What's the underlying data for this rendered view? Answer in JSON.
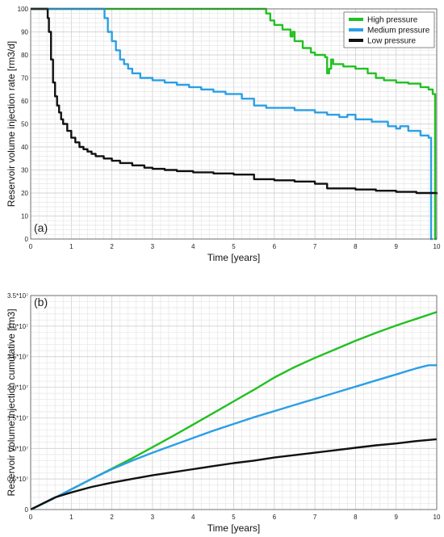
{
  "chart_data": [
    {
      "type": "line",
      "panel_label": "(a)",
      "xlabel": "Time [years]",
      "ylabel": "Reservoir volume injection rate [rm3/d]",
      "xlim": [
        0,
        10
      ],
      "ylim": [
        0,
        100
      ],
      "xticks": [
        "0",
        "1",
        "2",
        "3",
        "4",
        "5",
        "6",
        "7",
        "8",
        "9",
        "10"
      ],
      "yticks": [
        "0",
        "10",
        "20",
        "30",
        "40",
        "50",
        "60",
        "70",
        "80",
        "90",
        "100"
      ],
      "grid": true,
      "legend_position": "top-right",
      "legend": [
        "High pressure",
        "Medium pressure",
        "Low pressure"
      ],
      "series": [
        {
          "name": "High pressure",
          "color": "#22c022",
          "x": [
            0,
            5.75,
            5.8,
            5.9,
            6.0,
            6.2,
            6.4,
            6.45,
            6.5,
            6.7,
            6.9,
            7.0,
            7.2,
            7.25,
            7.3,
            7.35,
            7.4,
            7.45,
            7.5,
            7.7,
            8.0,
            8.3,
            8.5,
            8.7,
            9.0,
            9.3,
            9.6,
            9.8,
            9.9,
            9.95,
            9.96,
            10.0
          ],
          "y": [
            100,
            100,
            98,
            95,
            93,
            91,
            88,
            90,
            86,
            83,
            81,
            80,
            80,
            79,
            72,
            74,
            78,
            76,
            76,
            75,
            74,
            72,
            70,
            69,
            68,
            67.5,
            66,
            65,
            63,
            63,
            0,
            0
          ]
        },
        {
          "name": "Medium pressure",
          "color": "#2b9fe6",
          "x": [
            0,
            1.78,
            1.82,
            1.9,
            2.0,
            2.1,
            2.2,
            2.3,
            2.4,
            2.5,
            2.7,
            3.0,
            3.3,
            3.6,
            3.9,
            4.2,
            4.5,
            4.8,
            5.0,
            5.2,
            5.5,
            5.8,
            6.0,
            6.5,
            7.0,
            7.3,
            7.6,
            7.8,
            8.0,
            8.2,
            8.4,
            8.8,
            9.0,
            9.1,
            9.3,
            9.6,
            9.8,
            9.85,
            9.86,
            9.9
          ],
          "y": [
            100,
            100,
            96,
            90,
            86,
            82,
            78,
            76,
            74,
            72,
            70,
            69,
            68,
            67,
            66,
            65,
            64,
            63,
            63,
            61,
            58,
            57,
            57,
            56,
            55,
            54,
            53,
            54,
            52,
            52,
            51,
            49,
            48,
            49,
            47,
            45,
            44,
            44,
            0,
            0
          ]
        },
        {
          "name": "Low pressure",
          "color": "#111111",
          "x": [
            0,
            0.38,
            0.42,
            0.45,
            0.5,
            0.55,
            0.6,
            0.65,
            0.7,
            0.75,
            0.8,
            0.9,
            1.0,
            1.1,
            1.2,
            1.3,
            1.4,
            1.5,
            1.6,
            1.8,
            2.0,
            2.2,
            2.5,
            2.8,
            3.0,
            3.3,
            3.6,
            4.0,
            4.5,
            5.0,
            5.5,
            6.0,
            6.5,
            7.0,
            7.3,
            7.5,
            8.0,
            8.5,
            9.0,
            9.5,
            10.0
          ],
          "y": [
            100,
            100,
            96,
            90,
            78,
            68,
            62,
            58,
            55,
            52,
            50,
            47,
            44,
            42,
            40,
            39,
            38,
            37,
            36,
            35,
            34,
            33,
            32,
            31,
            30.5,
            30,
            29.5,
            29,
            28.5,
            28,
            26,
            25.5,
            25,
            24,
            22,
            22,
            21.5,
            21,
            20.5,
            20,
            19.5
          ]
        }
      ]
    },
    {
      "type": "line",
      "panel_label": "(b)",
      "xlabel": "Time [years]",
      "ylabel": "Reservoir volume injection cumulative [rm3]",
      "xlim": [
        0,
        10
      ],
      "ylim": [
        0,
        35000000.0
      ],
      "xticks": [
        "0",
        "1",
        "2",
        "3",
        "4",
        "5",
        "6",
        "7",
        "8",
        "9",
        "10"
      ],
      "yticks": [
        "0",
        "0.5*10⁷",
        "1.0*10⁷",
        "1.5*10⁷",
        "2.0*10⁷",
        "2.5*10⁷",
        "3.0*10⁷",
        "3.5*10⁷"
      ],
      "grid": true,
      "series": [
        {
          "name": "High pressure",
          "color": "#22c022",
          "x": [
            0,
            0.5,
            1,
            1.5,
            2,
            2.5,
            3,
            3.5,
            4,
            4.5,
            5,
            5.5,
            6,
            6.5,
            7,
            7.5,
            8,
            8.5,
            9,
            9.5,
            10
          ],
          "y": [
            0,
            1600000.0,
            3300000.0,
            5000000.0,
            6700000.0,
            8400000.0,
            10200000.0,
            12000000.0,
            13900000.0,
            15800000.0,
            17700000.0,
            19600000.0,
            21600000.0,
            23300000.0,
            24800000.0,
            26200000.0,
            27600000.0,
            28900000.0,
            30100000.0,
            31200000.0,
            32300000.0
          ]
        },
        {
          "name": "Medium pressure",
          "color": "#2b9fe6",
          "x": [
            0,
            0.5,
            1,
            1.5,
            2,
            2.5,
            3,
            3.5,
            4,
            4.5,
            5,
            5.5,
            6,
            6.5,
            7,
            7.5,
            8,
            8.5,
            9,
            9.5,
            9.8,
            10
          ],
          "y": [
            0,
            1600000.0,
            3300000.0,
            5000000.0,
            6600000.0,
            8000000.0,
            9300000.0,
            10500000.0,
            11700000.0,
            12900000.0,
            14000000.0,
            15100000.0,
            16100000.0,
            17100000.0,
            18100000.0,
            19100000.0,
            20100000.0,
            21100000.0,
            22100000.0,
            23100000.0,
            23600000.0,
            23600000.0
          ]
        },
        {
          "name": "Low pressure",
          "color": "#111111",
          "x": [
            0,
            0.3,
            0.6,
            1,
            1.5,
            2,
            2.5,
            3,
            3.5,
            4,
            4.5,
            5,
            5.5,
            6,
            6.5,
            7,
            7.5,
            8,
            8.5,
            9,
            9.5,
            10
          ],
          "y": [
            0,
            1000000.0,
            2000000.0,
            2800000.0,
            3700000.0,
            4400000.0,
            5000000.0,
            5600000.0,
            6100000.0,
            6600000.0,
            7100000.0,
            7600000.0,
            8000000.0,
            8500000.0,
            8900000.0,
            9300000.0,
            9700000.0,
            10100000.0,
            10500000.0,
            10800000.0,
            11200000.0,
            11500000.0
          ]
        }
      ]
    }
  ]
}
